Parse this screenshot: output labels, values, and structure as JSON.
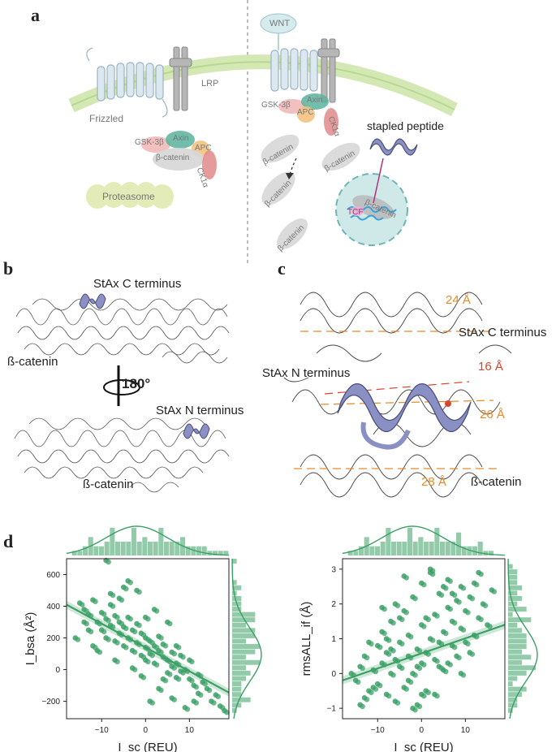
{
  "panel_a": {
    "letter": "a",
    "left": {
      "receptor": "Frizzled",
      "coreceptor": "LRP",
      "complex": [
        "GSK-3β",
        "Axin",
        "APC",
        "β-catenin",
        "CK1α"
      ],
      "proteasome": "Proteasome"
    },
    "right": {
      "ligand": "WNT",
      "complex": [
        "GSK-3β",
        "Axin",
        "APC",
        "CK1α"
      ],
      "beta_catenin": "β-catenin",
      "peptide_label": "stapled peptide",
      "nucleus_beta": "β-catenin",
      "tcf": "TCF"
    }
  },
  "panel_b": {
    "letter": "b",
    "top_label": "StAx C terminus",
    "protein_top": "ß-catenin",
    "rotation": "180°",
    "bottom_label": "StAx N terminus",
    "protein_bottom": "ß-catenin"
  },
  "panel_c": {
    "letter": "c",
    "c_terminus": "StAx C terminus",
    "n_terminus": "StAx N terminus",
    "distances": [
      "24 Å",
      "16 Å",
      "26 Å",
      "28 Å"
    ],
    "protein": "ß-catenin"
  },
  "panel_d": {
    "letter": "d",
    "colors": {
      "points": "#3aa065",
      "line": "#3aa065"
    }
  },
  "chart_data": [
    {
      "type": "scatter",
      "xlabel": "I_sc (REU)",
      "ylabel": "I_bsa (Å²)",
      "xticks": [
        "−10",
        "0",
        "10"
      ],
      "yticks": [
        "600",
        "400",
        "200",
        "0",
        "−200"
      ],
      "xlim": [
        -18,
        19
      ],
      "ylim": [
        -310,
        700
      ],
      "regression": {
        "x": [
          -18,
          19
        ],
        "y": [
          410,
          -145
        ]
      },
      "marginals": "histogram+kde",
      "points": [
        [
          -15,
          420
        ],
        [
          -14,
          380
        ],
        [
          -13,
          350
        ],
        [
          -12,
          440
        ],
        [
          -11,
          300
        ],
        [
          -10,
          360
        ],
        [
          -10,
          250
        ],
        [
          -9,
          320
        ],
        [
          -9,
          200
        ],
        [
          -8,
          410
        ],
        [
          -8,
          280
        ],
        [
          -7,
          340
        ],
        [
          -7,
          180
        ],
        [
          -6,
          300
        ],
        [
          -6,
          230
        ],
        [
          -5,
          270
        ],
        [
          -5,
          150
        ],
        [
          -4,
          330
        ],
        [
          -4,
          200
        ],
        [
          -3,
          250
        ],
        [
          -3,
          120
        ],
        [
          -2,
          290
        ],
        [
          -2,
          170
        ],
        [
          -1,
          230
        ],
        [
          -1,
          90
        ],
        [
          0,
          200
        ],
        [
          0,
          140
        ],
        [
          0,
          60
        ],
        [
          1,
          180
        ],
        [
          1,
          100
        ],
        [
          2,
          150
        ],
        [
          2,
          40
        ],
        [
          3,
          120
        ],
        [
          3,
          210
        ],
        [
          4,
          80
        ],
        [
          4,
          160
        ],
        [
          5,
          60
        ],
        [
          5,
          -20
        ],
        [
          6,
          110
        ],
        [
          6,
          20
        ],
        [
          7,
          40
        ],
        [
          7,
          -50
        ],
        [
          8,
          90
        ],
        [
          8,
          -10
        ],
        [
          9,
          0
        ],
        [
          10,
          -60
        ],
        [
          10,
          60
        ],
        [
          11,
          -100
        ],
        [
          12,
          -30
        ],
        [
          12,
          -150
        ],
        [
          13,
          -80
        ],
        [
          14,
          -120
        ],
        [
          15,
          -200
        ],
        [
          16,
          -160
        ],
        [
          17,
          -230
        ],
        [
          18,
          -260
        ],
        [
          -12,
          150
        ],
        [
          -13,
          250
        ],
        [
          -6,
          450
        ],
        [
          -2,
          500
        ],
        [
          -9,
          690
        ],
        [
          -4,
          560
        ],
        [
          2,
          380
        ],
        [
          5,
          300
        ],
        [
          -16,
          200
        ],
        [
          -11,
          120
        ],
        [
          -7,
          60
        ],
        [
          3,
          -120
        ],
        [
          6,
          -180
        ],
        [
          9,
          -240
        ],
        [
          1,
          -200
        ],
        [
          -3,
          10
        ],
        [
          -8,
          480
        ],
        [
          -5,
          520
        ],
        [
          0,
          330
        ],
        [
          4,
          -60
        ],
        [
          11,
          -200
        ],
        [
          -14,
          300
        ],
        [
          -1,
          -40
        ],
        [
          7,
          150
        ]
      ]
    },
    {
      "type": "scatter",
      "xlabel": "I_sc (REU)",
      "ylabel": "rmsALL_if (Å)",
      "xticks": [
        "−10",
        "0",
        "10"
      ],
      "yticks": [
        "3",
        "2",
        "1",
        "0",
        "−1"
      ],
      "xlim": [
        -18,
        19
      ],
      "ylim": [
        -1.3,
        3.3
      ],
      "regression": {
        "x": [
          -18,
          19
        ],
        "y": [
          -0.2,
          1.4
        ]
      },
      "marginals": "histogram+kde",
      "points": [
        [
          -15,
          -0.2
        ],
        [
          -14,
          0.2
        ],
        [
          -13,
          0.5
        ],
        [
          -12,
          -0.5
        ],
        [
          -11,
          0.1
        ],
        [
          -10,
          0.8
        ],
        [
          -10,
          -0.3
        ],
        [
          -9,
          0.3
        ],
        [
          -9,
          1.2
        ],
        [
          -8,
          -0.6
        ],
        [
          -8,
          0.6
        ],
        [
          -7,
          0.0
        ],
        [
          -7,
          1.5
        ],
        [
          -6,
          0.4
        ],
        [
          -6,
          -0.8
        ],
        [
          -5,
          0.9
        ],
        [
          -5,
          0.2
        ],
        [
          -4,
          -0.4
        ],
        [
          -4,
          1.8
        ],
        [
          -3,
          0.5
        ],
        [
          -3,
          1.1
        ],
        [
          -2,
          0.0
        ],
        [
          -2,
          2.2
        ],
        [
          -1,
          0.7
        ],
        [
          -1,
          -0.9
        ],
        [
          0,
          0.3
        ],
        [
          0,
          1.4
        ],
        [
          0,
          2.6
        ],
        [
          1,
          0.6
        ],
        [
          1,
          -0.5
        ],
        [
          2,
          1.0
        ],
        [
          2,
          2.9
        ],
        [
          3,
          0.4
        ],
        [
          3,
          1.7
        ],
        [
          4,
          0.9
        ],
        [
          4,
          2.3
        ],
        [
          5,
          1.2
        ],
        [
          5,
          0.1
        ],
        [
          6,
          1.9
        ],
        [
          6,
          2.7
        ],
        [
          7,
          0.8
        ],
        [
          7,
          1.5
        ],
        [
          8,
          2.1
        ],
        [
          8,
          0.5
        ],
        [
          9,
          1.3
        ],
        [
          9,
          2.5
        ],
        [
          10,
          0.9
        ],
        [
          10,
          1.8
        ],
        [
          11,
          2.2
        ],
        [
          12,
          1.1
        ],
        [
          12,
          2.6
        ],
        [
          13,
          1.6
        ],
        [
          14,
          2.0
        ],
        [
          15,
          1.4
        ],
        [
          16,
          2.4
        ],
        [
          -12,
          0.9
        ],
        [
          -13,
          -0.7
        ],
        [
          -6,
          2.0
        ],
        [
          -2,
          -1.0
        ],
        [
          -9,
          1.9
        ],
        [
          -4,
          2.8
        ],
        [
          2,
          3.0
        ],
        [
          5,
          2.5
        ],
        [
          -16,
          0.0
        ],
        [
          -11,
          -0.4
        ],
        [
          -7,
          0.7
        ],
        [
          3,
          -0.6
        ],
        [
          6,
          0.3
        ],
        [
          9,
          0.0
        ],
        [
          1,
          1.6
        ],
        [
          -3,
          -0.2
        ],
        [
          -8,
          1.0
        ],
        [
          -5,
          1.6
        ],
        [
          0,
          -0.6
        ],
        [
          4,
          0.2
        ],
        [
          11,
          0.6
        ],
        [
          -14,
          -0.9
        ],
        [
          -1,
          0.2
        ],
        [
          7,
          2.3
        ],
        [
          13,
          2.9
        ]
      ]
    }
  ]
}
